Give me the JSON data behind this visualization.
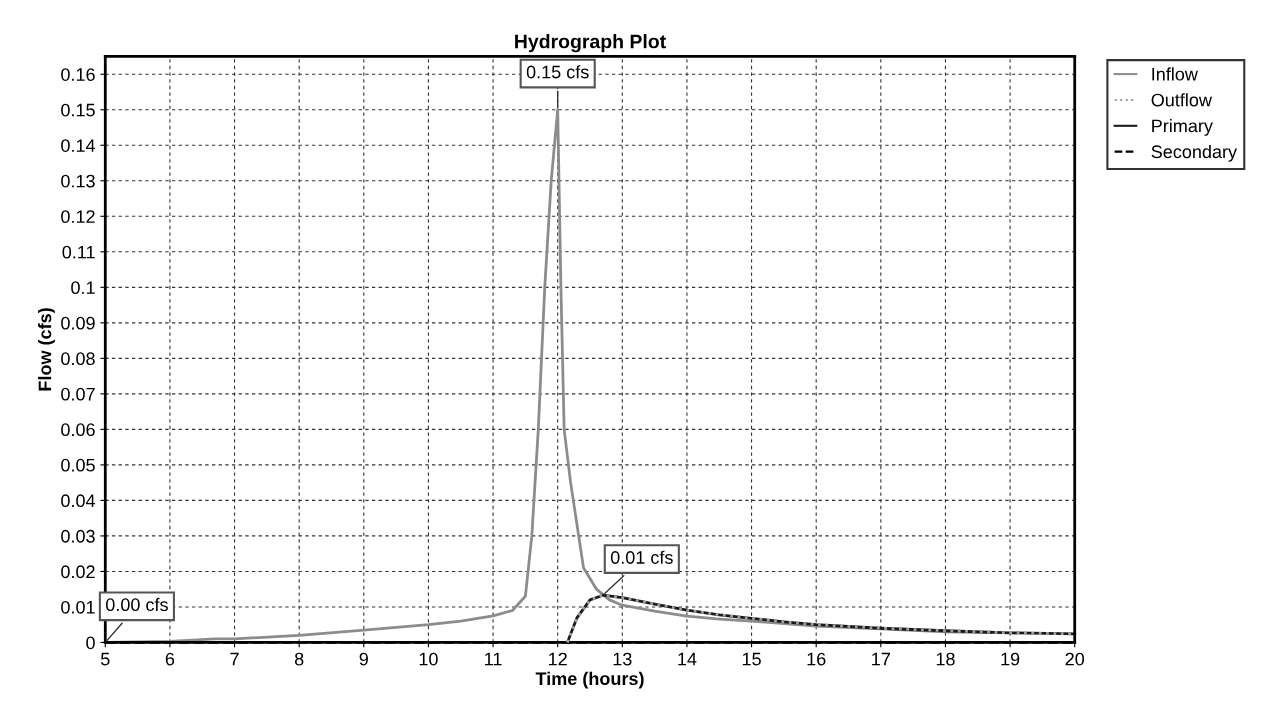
{
  "chart_data": {
    "type": "line",
    "title": "Hydrograph Plot",
    "xlabel": "Time (hours)",
    "ylabel": "Flow (cfs)",
    "xlim": [
      5,
      20
    ],
    "xticks": [
      5,
      6,
      7,
      8,
      9,
      10,
      11,
      12,
      13,
      14,
      15,
      16,
      17,
      18,
      19,
      20
    ],
    "ylim": [
      0,
      0.165
    ],
    "yticks": [
      0,
      0.01,
      0.02,
      0.03,
      0.04,
      0.05,
      0.06,
      0.07,
      0.08,
      0.09,
      0.1,
      0.11,
      0.12,
      0.13,
      0.14,
      0.15,
      0.16
    ],
    "grid": true,
    "legend": "top right",
    "series": [
      {
        "name": "Inflow",
        "color": "#8c8c8c",
        "line_style": "solid",
        "x": [
          5,
          6,
          6.7,
          7,
          8,
          9,
          10,
          10.5,
          11,
          11.3,
          11.5,
          11.6,
          11.7,
          11.8,
          11.9,
          12,
          12.05,
          12.1,
          12.2,
          12.4,
          12.5,
          12.6,
          12.8,
          13,
          13.5,
          14,
          14.5,
          15,
          16,
          17,
          18,
          18.7
        ],
        "values": [
          0,
          0.0003,
          0.001,
          0.001,
          0.002,
          0.0035,
          0.005,
          0.006,
          0.0075,
          0.009,
          0.013,
          0.03,
          0.06,
          0.1,
          0.13,
          0.15,
          0.1,
          0.06,
          0.045,
          0.021,
          0.018,
          0.015,
          0.012,
          0.0105,
          0.0088,
          0.0074,
          0.0066,
          0.006,
          0.0046,
          0.0038,
          0.003,
          0.0028
        ]
      },
      {
        "name": "Outflow",
        "color": "#a0a0a0",
        "line_style": "dotted",
        "x": [
          12.15,
          12.3,
          12.5,
          12.7,
          13,
          13.5,
          14,
          14.5,
          15,
          15.5,
          16,
          17,
          18,
          19,
          20
        ],
        "values": [
          0,
          0.007,
          0.012,
          0.0133,
          0.0126,
          0.0108,
          0.0091,
          0.0078,
          0.0068,
          0.0058,
          0.005,
          0.004,
          0.0033,
          0.0027,
          0.0024
        ]
      },
      {
        "name": "Primary",
        "color": "#1a1a1a",
        "line_style": "solid",
        "x": [
          12.15,
          12.3,
          12.5,
          12.7,
          13,
          13.5,
          14,
          14.5,
          15,
          15.5,
          16,
          17,
          18,
          19,
          20
        ],
        "values": [
          0,
          0.007,
          0.012,
          0.0133,
          0.0126,
          0.0108,
          0.0091,
          0.0078,
          0.0068,
          0.0058,
          0.005,
          0.004,
          0.0033,
          0.0027,
          0.0024
        ]
      },
      {
        "name": "Secondary",
        "color": "#000000",
        "line_style": "dashed",
        "x": [
          5,
          20
        ],
        "values": [
          0,
          0
        ]
      }
    ],
    "annotations": [
      {
        "text": "0.15 cfs",
        "x": 12,
        "y": 0.15
      },
      {
        "text": "0.01 cfs",
        "x": 12.7,
        "y": 0.0133
      },
      {
        "text": "0.00 cfs",
        "x": 5,
        "y": 0
      }
    ]
  }
}
